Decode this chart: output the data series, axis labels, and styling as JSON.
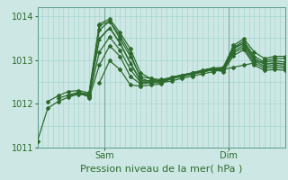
{
  "bg_color": "#cde8e4",
  "grid_color": "#9ecfca",
  "line_color": "#2d6a2d",
  "ylim": [
    1011.0,
    1014.2
  ],
  "xlim": [
    0,
    48
  ],
  "sam_x": 13,
  "dim_x": 37,
  "ylabel_ticks": [
    1011,
    1012,
    1013,
    1014
  ],
  "xlabel": "Pression niveau de la mer( hPa )",
  "xlabel_fontsize": 8,
  "tick_fontsize": 7,
  "series": [
    {
      "x": [
        0,
        2,
        4,
        6,
        8,
        10,
        12,
        14,
        16,
        18,
        20,
        22,
        24,
        26,
        28,
        30,
        32,
        34,
        36,
        38,
        40,
        42,
        44,
        46,
        48
      ],
      "y": [
        1011.15,
        1011.9,
        1012.05,
        1012.15,
        1012.22,
        1012.18,
        1013.78,
        1013.88,
        1013.55,
        1013.15,
        1012.58,
        1012.5,
        1012.48,
        1012.52,
        1012.58,
        1012.63,
        1012.68,
        1012.73,
        1012.78,
        1012.83,
        1012.88,
        1012.93,
        1012.98,
        1013.03,
        1013.03
      ],
      "marker": "D",
      "markersize": 2.0,
      "linewidth": 0.9
    },
    {
      "x": [
        2,
        4,
        6,
        8,
        10,
        12,
        14,
        16,
        18,
        20,
        22,
        24,
        26,
        28,
        30,
        32,
        34,
        36,
        38,
        40,
        42,
        44,
        46,
        48
      ],
      "y": [
        1012.05,
        1012.18,
        1012.28,
        1012.3,
        1012.25,
        1013.82,
        1013.93,
        1013.62,
        1013.25,
        1012.7,
        1012.57,
        1012.52,
        1012.57,
        1012.62,
        1012.67,
        1012.72,
        1012.77,
        1012.82,
        1013.33,
        1013.48,
        1013.18,
        1013.03,
        1013.08,
        1013.08
      ],
      "marker": "D",
      "markersize": 2.0,
      "linewidth": 0.9
    },
    {
      "x": [
        4,
        6,
        8,
        10,
        12,
        14,
        16,
        18,
        20,
        22,
        24,
        26,
        28,
        30,
        32,
        34,
        36,
        38,
        40,
        42,
        44,
        46,
        48
      ],
      "y": [
        1012.12,
        1012.2,
        1012.26,
        1012.22,
        1013.68,
        1013.88,
        1013.48,
        1013.08,
        1012.62,
        1012.57,
        1012.55,
        1012.6,
        1012.65,
        1012.7,
        1012.76,
        1012.81,
        1012.83,
        1013.28,
        1013.43,
        1013.08,
        1012.95,
        1012.98,
        1012.95
      ],
      "marker": "D",
      "markersize": 2.0,
      "linewidth": 0.9
    },
    {
      "x": [
        6,
        8,
        10,
        12,
        14,
        16,
        18,
        20,
        22,
        24,
        26,
        28,
        30,
        32,
        34,
        36,
        38,
        40,
        42,
        44,
        46,
        48
      ],
      "y": [
        1012.18,
        1012.25,
        1012.2,
        1013.48,
        1013.73,
        1013.38,
        1012.93,
        1012.52,
        1012.52,
        1012.52,
        1012.6,
        1012.65,
        1012.7,
        1012.76,
        1012.81,
        1012.8,
        1013.26,
        1013.38,
        1013.03,
        1012.9,
        1012.93,
        1012.9
      ],
      "marker": "^",
      "markersize": 2.5,
      "linewidth": 1.2
    },
    {
      "x": [
        8,
        10,
        12,
        14,
        16,
        18,
        20,
        22,
        24,
        26,
        28,
        30,
        32,
        34,
        36,
        38,
        40,
        42,
        44,
        46,
        48
      ],
      "y": [
        1012.25,
        1012.15,
        1013.18,
        1013.52,
        1013.22,
        1012.78,
        1012.48,
        1012.5,
        1012.5,
        1012.6,
        1012.65,
        1012.7,
        1012.75,
        1012.8,
        1012.78,
        1013.2,
        1013.33,
        1012.98,
        1012.85,
        1012.88,
        1012.85
      ],
      "marker": "D",
      "markersize": 2.0,
      "linewidth": 0.9
    },
    {
      "x": [
        10,
        12,
        14,
        16,
        18,
        20,
        22,
        24,
        26,
        28,
        30,
        32,
        34,
        36,
        38,
        40,
        42,
        44,
        46,
        48
      ],
      "y": [
        1012.12,
        1012.88,
        1013.32,
        1013.08,
        1012.62,
        1012.45,
        1012.48,
        1012.48,
        1012.6,
        1012.65,
        1012.69,
        1012.74,
        1012.79,
        1012.76,
        1013.16,
        1013.28,
        1012.93,
        1012.81,
        1012.83,
        1012.81
      ],
      "marker": "D",
      "markersize": 2.0,
      "linewidth": 0.9
    },
    {
      "x": [
        12,
        14,
        16,
        18,
        20,
        22,
        24,
        26,
        28,
        30,
        32,
        34,
        36,
        38,
        40,
        42,
        44,
        46,
        48
      ],
      "y": [
        1012.48,
        1012.98,
        1012.78,
        1012.43,
        1012.4,
        1012.43,
        1012.45,
        1012.58,
        1012.63,
        1012.68,
        1012.73,
        1012.78,
        1012.73,
        1013.1,
        1013.23,
        1012.88,
        1012.76,
        1012.78,
        1012.76
      ],
      "marker": "D",
      "markersize": 2.0,
      "linewidth": 0.9
    }
  ]
}
